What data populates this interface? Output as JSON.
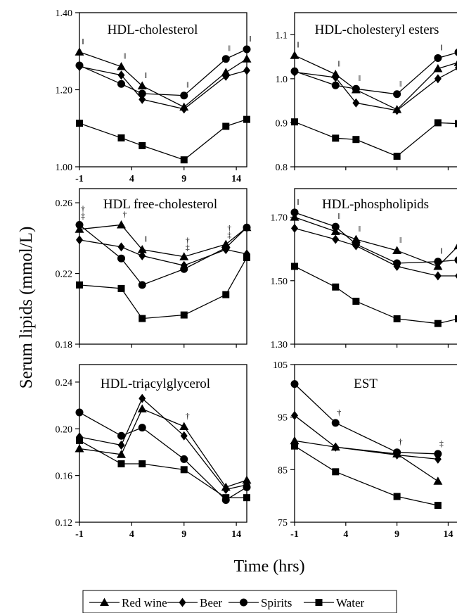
{
  "figure": {
    "ylabel": "Serum lipids (mmol/L)",
    "xlabel": "Time (hrs)"
  },
  "legend": {
    "items": [
      {
        "label": "Red wine",
        "marker": "triangle"
      },
      {
        "label": "Beer",
        "marker": "diamond"
      },
      {
        "label": "Spirits",
        "marker": "circle"
      },
      {
        "label": "Water",
        "marker": "square"
      }
    ]
  },
  "chart_data": [
    {
      "type": "line",
      "title": "HDL-cholesterol",
      "x_ticks": [
        "-1",
        "4",
        "9",
        "14"
      ],
      "y_ticks": [
        "1.00",
        "1.20",
        "1.40"
      ],
      "xlim": [
        -1,
        15
      ],
      "ylim": [
        1.0,
        1.4
      ],
      "series": [
        {
          "name": "Red wine",
          "marker": "triangle",
          "x": [
            -1,
            3,
            5,
            9,
            13,
            15
          ],
          "values": [
            1.298,
            1.26,
            1.21,
            1.155,
            1.245,
            1.28
          ]
        },
        {
          "name": "Beer",
          "marker": "diamond",
          "x": [
            -1,
            3,
            5,
            9,
            13,
            15
          ],
          "values": [
            1.26,
            1.238,
            1.175,
            1.15,
            1.235,
            1.25
          ]
        },
        {
          "name": "Spirits",
          "marker": "circle",
          "x": [
            -1,
            3,
            5,
            9,
            13,
            15
          ],
          "values": [
            1.263,
            1.215,
            1.19,
            1.185,
            1.28,
            1.305
          ]
        },
        {
          "name": "Water",
          "marker": "square",
          "x": [
            -1,
            3,
            5,
            9,
            13,
            15
          ],
          "values": [
            1.113,
            1.075,
            1.055,
            1.018,
            1.105,
            1.123
          ]
        }
      ],
      "annotations": [
        {
          "x": -1,
          "y": 1.298,
          "text": "‖"
        },
        {
          "x": 3,
          "y": 1.26,
          "text": "‖"
        },
        {
          "x": 5,
          "y": 1.21,
          "text": "‖"
        },
        {
          "x": 9,
          "y": 1.185,
          "text": "‖"
        },
        {
          "x": 13,
          "y": 1.28,
          "text": "‖"
        },
        {
          "x": 15,
          "y": 1.305,
          "text": "‖"
        }
      ]
    },
    {
      "type": "line",
      "title": "HDL-cholesteryl esters",
      "x_ticks": [],
      "y_ticks": [
        "0.8",
        "0.9",
        "1.0",
        "1.1"
      ],
      "xlim": [
        -1,
        15
      ],
      "ylim": [
        0.8,
        1.15
      ],
      "series": [
        {
          "name": "Red wine",
          "marker": "triangle",
          "x": [
            -1,
            3,
            5,
            9,
            13,
            15
          ],
          "values": [
            1.053,
            1.01,
            0.975,
            0.93,
            1.023,
            1.037
          ]
        },
        {
          "name": "Beer",
          "marker": "diamond",
          "x": [
            -1,
            3,
            5,
            9,
            13,
            15
          ],
          "values": [
            1.015,
            1.003,
            0.945,
            0.928,
            1.0,
            1.025
          ]
        },
        {
          "name": "Spirits",
          "marker": "circle",
          "x": [
            -1,
            3,
            5,
            9,
            13,
            15
          ],
          "values": [
            1.017,
            0.985,
            0.977,
            0.965,
            1.047,
            1.06
          ]
        },
        {
          "name": "Water",
          "marker": "square",
          "x": [
            -1,
            3,
            5,
            9,
            13,
            15
          ],
          "values": [
            0.902,
            0.865,
            0.862,
            0.824,
            0.9,
            0.898
          ]
        }
      ],
      "annotations": [
        {
          "x": -1,
          "y": 1.053,
          "text": "‖"
        },
        {
          "x": 3,
          "y": 1.01,
          "text": "‖"
        },
        {
          "x": 5,
          "y": 0.977,
          "text": "‖"
        },
        {
          "x": 9,
          "y": 0.965,
          "text": "‖"
        },
        {
          "x": 13,
          "y": 1.047,
          "text": "‖"
        }
      ]
    },
    {
      "type": "line",
      "title": "HDL free-cholesterol",
      "x_ticks": [],
      "y_ticks": [
        "0.18",
        "0.22",
        "0.26"
      ],
      "xlim": [
        -1,
        15
      ],
      "ylim": [
        0.18,
        0.268
      ],
      "series": [
        {
          "name": "Red wine",
          "marker": "triangle",
          "x": [
            -1,
            3,
            5,
            9,
            13,
            15
          ],
          "values": [
            0.245,
            0.2475,
            0.2335,
            0.2295,
            0.2365,
            0.246
          ]
        },
        {
          "name": "Beer",
          "marker": "diamond",
          "x": [
            -1,
            3,
            5,
            9,
            13,
            15
          ],
          "values": [
            0.239,
            0.235,
            0.23,
            0.2245,
            0.2335,
            0.231
          ]
        },
        {
          "name": "Spirits",
          "marker": "circle",
          "x": [
            -1,
            3,
            5,
            9,
            13,
            15
          ],
          "values": [
            0.2475,
            0.2285,
            0.2135,
            0.2225,
            0.2345,
            0.246
          ]
        },
        {
          "name": "Water",
          "marker": "square",
          "x": [
            -1,
            3,
            5,
            9,
            13,
            15
          ],
          "values": [
            0.2135,
            0.2115,
            0.1945,
            0.1965,
            0.208,
            0.229
          ]
        }
      ],
      "annotations": [
        {
          "x": -1,
          "y": 0.2475,
          "text": "†‡"
        },
        {
          "x": 3,
          "y": 0.2475,
          "text": "†"
        },
        {
          "x": 5,
          "y": 0.2335,
          "text": "‖"
        },
        {
          "x": 9,
          "y": 0.2295,
          "text": "†‡"
        },
        {
          "x": 13,
          "y": 0.2365,
          "text": "†‡"
        }
      ]
    },
    {
      "type": "line",
      "title": "HDL-phospholipids",
      "x_ticks": [],
      "y_ticks": [
        "1.30",
        "1.50",
        "1.70"
      ],
      "xlim": [
        -1,
        15
      ],
      "ylim": [
        1.3,
        1.79
      ],
      "series": [
        {
          "name": "Red wine",
          "marker": "triangle",
          "x": [
            -1,
            3,
            5,
            9,
            13,
            15
          ],
          "values": [
            1.7,
            1.655,
            1.63,
            1.595,
            1.545,
            1.61
          ]
        },
        {
          "name": "Beer",
          "marker": "diamond",
          "x": [
            -1,
            3,
            5,
            9,
            13,
            15
          ],
          "values": [
            1.665,
            1.63,
            1.61,
            1.545,
            1.515,
            1.515
          ]
        },
        {
          "name": "Spirits",
          "marker": "circle",
          "x": [
            -1,
            3,
            5,
            9,
            13,
            15
          ],
          "values": [
            1.715,
            1.67,
            1.615,
            1.555,
            1.56,
            1.565
          ]
        },
        {
          "name": "Water",
          "marker": "square",
          "x": [
            -1,
            3,
            5,
            9,
            13,
            15
          ],
          "values": [
            1.545,
            1.48,
            1.435,
            1.38,
            1.365,
            1.38
          ]
        }
      ],
      "annotations": [
        {
          "x": -1,
          "y": 1.715,
          "text": "‖"
        },
        {
          "x": 3,
          "y": 1.67,
          "text": "‖"
        },
        {
          "x": 5,
          "y": 1.63,
          "text": "‖"
        },
        {
          "x": 9,
          "y": 1.595,
          "text": "‖"
        },
        {
          "x": 13,
          "y": 1.56,
          "text": "‖"
        }
      ]
    },
    {
      "type": "line",
      "title": "HDL-triacylglycerol",
      "x_ticks": [
        "-1",
        "4",
        "9",
        "14"
      ],
      "y_ticks": [
        "0.12",
        "0.16",
        "0.20",
        "0.24"
      ],
      "xlim": [
        -1,
        15
      ],
      "ylim": [
        0.12,
        0.255
      ],
      "series": [
        {
          "name": "Red wine",
          "marker": "triangle",
          "x": [
            -1,
            3,
            5,
            9,
            13,
            15
          ],
          "values": [
            0.183,
            0.178,
            0.217,
            0.202,
            0.15,
            0.156
          ]
        },
        {
          "name": "Beer",
          "marker": "diamond",
          "x": [
            -1,
            3,
            5,
            9,
            13,
            15
          ],
          "values": [
            0.193,
            0.186,
            0.226,
            0.194,
            0.148,
            0.152
          ]
        },
        {
          "name": "Spirits",
          "marker": "circle",
          "x": [
            -1,
            3,
            5,
            9,
            13,
            15
          ],
          "values": [
            0.214,
            0.194,
            0.201,
            0.174,
            0.139,
            0.15
          ]
        },
        {
          "name": "Water",
          "marker": "square",
          "x": [
            -1,
            3,
            5,
            9,
            13,
            15
          ],
          "values": [
            0.19,
            0.17,
            0.17,
            0.165,
            0.141,
            0.141
          ]
        }
      ],
      "annotations": [
        {
          "x": 5,
          "y": 0.226,
          "text": "‖"
        },
        {
          "x": 9,
          "y": 0.202,
          "text": "†"
        }
      ]
    },
    {
      "type": "line",
      "title": "EST",
      "x_ticks": [
        "-1",
        "4",
        "9",
        "14"
      ],
      "y_ticks": [
        "75",
        "85",
        "95",
        "105"
      ],
      "xlim": [
        -1,
        15
      ],
      "ylim": [
        75,
        105
      ],
      "series": [
        {
          "name": "Red wine",
          "marker": "triangle",
          "x": [
            -1,
            3,
            9,
            13
          ],
          "values": [
            90.5,
            89.3,
            88.0,
            82.8
          ]
        },
        {
          "name": "Beer",
          "marker": "diamond",
          "x": [
            -1,
            3,
            9,
            13
          ],
          "values": [
            95.3,
            89.3,
            87.8,
            87.0
          ]
        },
        {
          "name": "Spirits",
          "marker": "circle",
          "x": [
            -1,
            3,
            9,
            13
          ],
          "values": [
            101.3,
            93.9,
            88.3,
            88.0
          ]
        },
        {
          "name": "Water",
          "marker": "square",
          "x": [
            -1,
            3,
            9,
            13
          ],
          "values": [
            89.5,
            84.6,
            79.9,
            78.2
          ]
        }
      ],
      "annotations": [
        {
          "x": 3,
          "y": 93.9,
          "text": "†"
        },
        {
          "x": 9,
          "y": 88.3,
          "text": "†"
        },
        {
          "x": 13,
          "y": 88.0,
          "text": "‡"
        }
      ]
    }
  ]
}
